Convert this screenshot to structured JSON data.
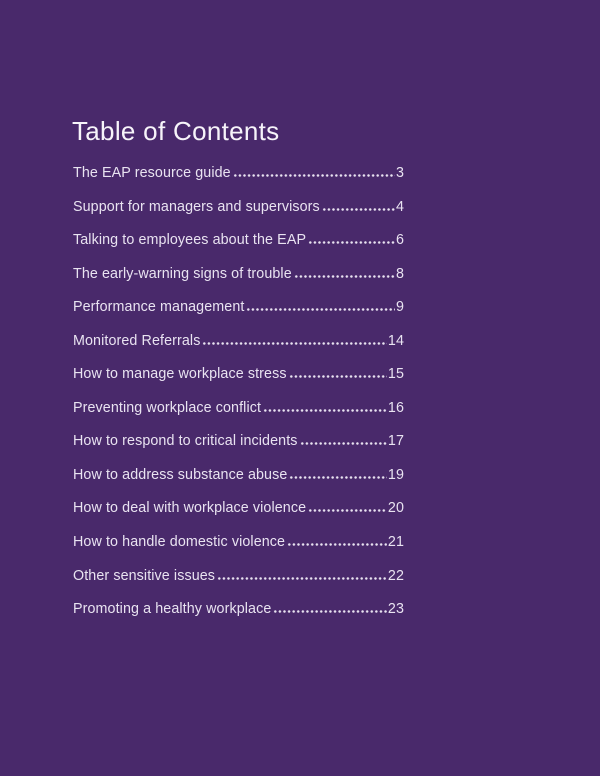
{
  "page": {
    "title": "Table of Contents",
    "background_color": "#49296b",
    "title_color": "#f7f4fa",
    "text_color": "#e9e3f1"
  },
  "toc": {
    "entries": [
      {
        "label": "The EAP resource guide",
        "page": "3"
      },
      {
        "label": "Support for managers and supervisors",
        "page": "4"
      },
      {
        "label": "Talking to employees about the EAP",
        "page": "6"
      },
      {
        "label": "The early-warning signs of trouble",
        "page": "8"
      },
      {
        "label": "Performance management",
        "page": "9"
      },
      {
        "label": "Monitored Referrals",
        "page": "14"
      },
      {
        "label": "How to manage workplace stress",
        "page": "15"
      },
      {
        "label": "Preventing workplace conflict",
        "page": "16"
      },
      {
        "label": "How to respond to critical incidents",
        "page": "17"
      },
      {
        "label": "How to address substance abuse",
        "page": "19"
      },
      {
        "label": "How to deal with workplace violence",
        "page": "20"
      },
      {
        "label": "How to handle domestic violence",
        "page": "21"
      },
      {
        "label": "Other sensitive issues",
        "page": "22"
      },
      {
        "label": "Promoting a healthy workplace",
        "page": "23"
      }
    ]
  }
}
